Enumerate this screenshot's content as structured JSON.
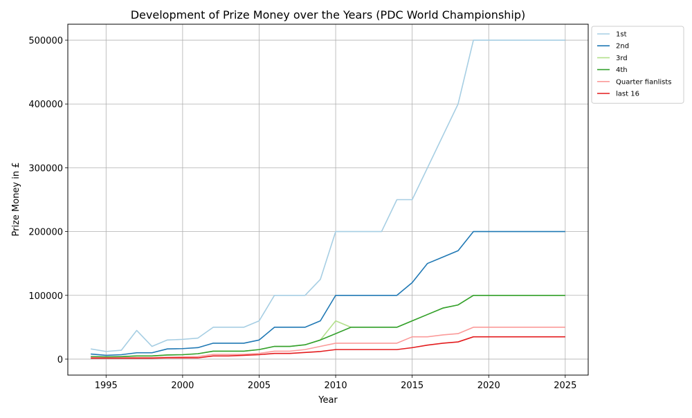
{
  "chart_data": {
    "type": "line",
    "title": "Development of Prize Money over the Years (PDC World Championship)",
    "xlabel": "Year",
    "ylabel": "Prize Money in £",
    "xlim": [
      1992.5,
      2026.5
    ],
    "ylim": [
      -25000,
      525000
    ],
    "xticks": [
      1995,
      2000,
      2005,
      2010,
      2015,
      2020,
      2025
    ],
    "yticks": [
      0,
      100000,
      200000,
      300000,
      400000,
      500000
    ],
    "grid": true,
    "legend_position": "outside-top-right",
    "x": [
      1994,
      1995,
      1996,
      1997,
      1998,
      1999,
      2000,
      2001,
      2002,
      2003,
      2004,
      2005,
      2006,
      2007,
      2008,
      2009,
      2010,
      2011,
      2012,
      2013,
      2014,
      2015,
      2016,
      2017,
      2018,
      2019,
      2020,
      2021,
      2022,
      2023,
      2024,
      2025
    ],
    "series": [
      {
        "name": "1st",
        "color": "#a6cee3",
        "values": [
          16000,
          12000,
          14000,
          45000,
          20000,
          30000,
          31000,
          33000,
          50000,
          50000,
          50000,
          60000,
          100000,
          100000,
          100000,
          125000,
          200000,
          200000,
          200000,
          200000,
          250000,
          250000,
          300000,
          350000,
          400000,
          500000,
          500000,
          500000,
          500000,
          500000,
          500000,
          500000
        ]
      },
      {
        "name": "2nd",
        "color": "#1f78b4",
        "values": [
          8000,
          6000,
          7000,
          10000,
          10000,
          16000,
          16500,
          18000,
          25000,
          25000,
          25000,
          30000,
          50000,
          50000,
          50000,
          60000,
          100000,
          100000,
          100000,
          100000,
          100000,
          120000,
          150000,
          160000,
          170000,
          200000,
          200000,
          200000,
          200000,
          200000,
          200000,
          200000
        ]
      },
      {
        "name": "3rd",
        "color": "#b2df8a",
        "values": [
          4000,
          3500,
          4000,
          5000,
          5000,
          6500,
          7000,
          8500,
          12500,
          12500,
          12500,
          15000,
          20000,
          20000,
          22500,
          30000,
          60000,
          50000,
          50000,
          50000,
          50000,
          60000,
          70000,
          80000,
          85000,
          100000,
          100000,
          100000,
          100000,
          100000,
          100000,
          100000
        ]
      },
      {
        "name": "4th",
        "color": "#33a02c",
        "values": [
          4000,
          3500,
          4000,
          5000,
          5000,
          6500,
          7000,
          8500,
          12500,
          12500,
          12500,
          15000,
          20000,
          20000,
          22500,
          30000,
          40000,
          50000,
          50000,
          50000,
          50000,
          60000,
          70000,
          80000,
          85000,
          100000,
          100000,
          100000,
          100000,
          100000,
          100000,
          100000
        ]
      },
      {
        "name": "Quarter fianlists",
        "color": "#fb9a99",
        "values": [
          2500,
          2000,
          2000,
          2500,
          2500,
          3000,
          3500,
          4000,
          7500,
          7500,
          7500,
          9000,
          12500,
          12500,
          15000,
          20000,
          25000,
          25000,
          25000,
          25000,
          25000,
          35000,
          35000,
          38000,
          40000,
          50000,
          50000,
          50000,
          50000,
          50000,
          50000,
          50000
        ]
      },
      {
        "name": "last 16",
        "color": "#e31a1c",
        "values": [
          1500,
          1500,
          1500,
          1500,
          1500,
          2000,
          2000,
          2000,
          5000,
          5000,
          6000,
          7000,
          9000,
          9000,
          10500,
          12000,
          15000,
          15000,
          15000,
          15000,
          15000,
          18000,
          22000,
          25000,
          27000,
          35000,
          35000,
          35000,
          35000,
          35000,
          35000,
          35000
        ]
      }
    ]
  }
}
